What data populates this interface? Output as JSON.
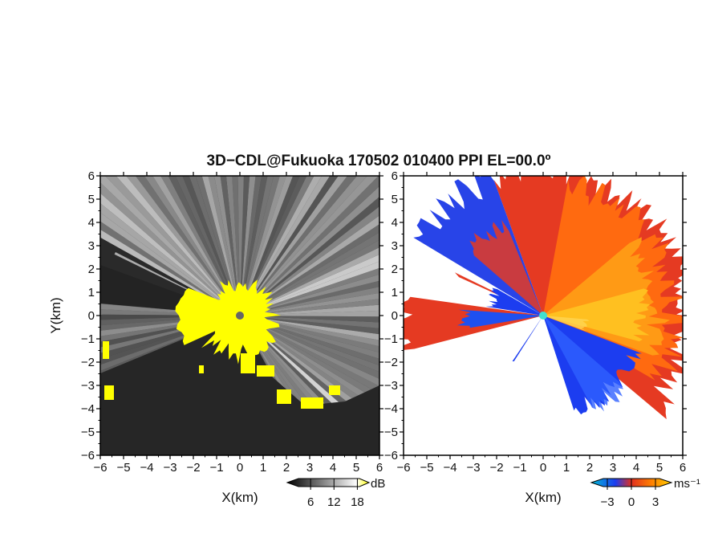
{
  "chart_data": [
    {
      "type": "heatmap",
      "title": "3D−CDL@Fukuoka 170502 010400 PPI EL=00.0º",
      "xlabel": "X(km)",
      "ylabel": "Y(km)",
      "xlim": [
        -6,
        6
      ],
      "ylim": [
        -6,
        6
      ],
      "xticks": [
        "−6",
        "−5",
        "−4",
        "−3",
        "−2",
        "−1",
        "0",
        "1",
        "2",
        "3",
        "4",
        "5",
        "6"
      ],
      "yticks": [
        "6",
        "5",
        "4",
        "3",
        "2",
        "1",
        "0",
        "−1",
        "−2",
        "−3",
        "−4",
        "−5",
        "−6"
      ],
      "quantity": "intensity",
      "colorbar": {
        "unit": "dB",
        "ticks": [
          "6",
          "12",
          "18"
        ],
        "tick_values": [
          6,
          12,
          18
        ],
        "range": [
          0,
          21
        ],
        "colors": [
          "#000000",
          "#ffffff",
          "#ffff00"
        ]
      },
      "radar_center": [
        0,
        0
      ],
      "saturated_color": "#ffff00",
      "background_color": "#2a2a2a"
    },
    {
      "type": "heatmap",
      "xlabel": "X(km)",
      "xlim": [
        -6,
        6
      ],
      "ylim": [
        -6,
        6
      ],
      "xticks": [
        "−6",
        "−5",
        "−4",
        "−3",
        "−2",
        "−1",
        "0",
        "1",
        "2",
        "3",
        "4",
        "5",
        "6"
      ],
      "yticks": [
        "6",
        "5",
        "4",
        "3",
        "2",
        "1",
        "0",
        "−1",
        "−2",
        "−3",
        "−4",
        "−5",
        "−6"
      ],
      "quantity": "radial velocity",
      "colorbar": {
        "unit": "ms⁻¹",
        "ticks": [
          "−3",
          "0",
          "3"
        ],
        "tick_values": [
          -3,
          0,
          3
        ],
        "range": [
          -5,
          5
        ],
        "colors": [
          "#00bcd4",
          "#1c3df0",
          "#e03020",
          "#ff8000",
          "#ffd000"
        ]
      },
      "radar_center": [
        0,
        0
      ],
      "center_marker_color": "#40e0d0",
      "background_color": "#ffffff"
    }
  ]
}
